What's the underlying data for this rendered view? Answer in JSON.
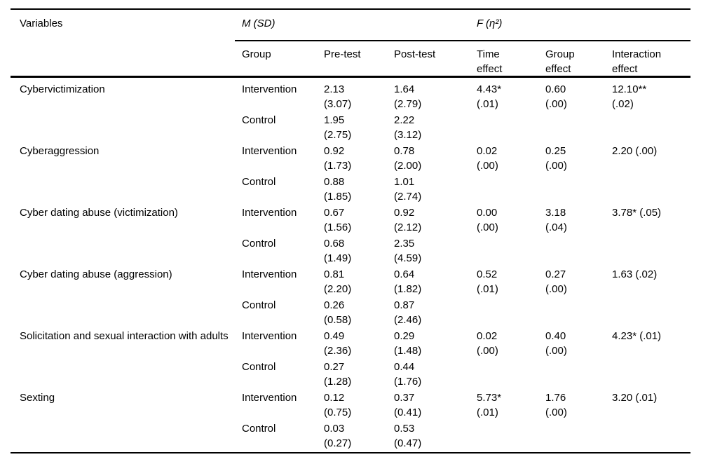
{
  "table": {
    "header": {
      "variables": "Variables",
      "msd": "M (SD)",
      "f_eta": "F (η²)",
      "group": "Group",
      "pre_test": "Pre-test",
      "post_test": "Post-test",
      "time_effect_line1": "Time",
      "time_effect_line2": "effect",
      "group_effect_line1": "Group",
      "group_effect_line2": "effect",
      "interaction_effect_line1": "Interaction",
      "interaction_effect_line2": "effect"
    },
    "rows": [
      {
        "variable": "Cybervictimization",
        "sub": [
          {
            "group": "Intervention",
            "pre_m": "2.13",
            "pre_sd": "(3.07)",
            "post_m": "1.64",
            "post_sd": "(2.79)",
            "time_f": "4.43*",
            "time_eta": "(.01)",
            "group_f": "0.60",
            "group_eta": "(.00)",
            "int_f": "12.10**",
            "int_eta": "(.02)"
          },
          {
            "group": "Control",
            "pre_m": "1.95",
            "pre_sd": "(2.75)",
            "post_m": "2.22",
            "post_sd": "(3.12)"
          }
        ]
      },
      {
        "variable": "Cyberaggression",
        "sub": [
          {
            "group": "Intervention",
            "pre_m": "0.92",
            "pre_sd": "(1.73)",
            "post_m": "0.78",
            "post_sd": "(2.00)",
            "time_f": "0.02",
            "time_eta": "(.00)",
            "group_f": "0.25",
            "group_eta": "(.00)",
            "int_f": "2.20 (.00)"
          },
          {
            "group": "Control",
            "pre_m": "0.88",
            "pre_sd": "(1.85)",
            "post_m": "1.01",
            "post_sd": "(2.74)"
          }
        ]
      },
      {
        "variable": "Cyber dating abuse (victimization)",
        "sub": [
          {
            "group": "Intervention",
            "pre_m": "0.67",
            "pre_sd": "(1.56)",
            "post_m": "0.92",
            "post_sd": "(2.12)",
            "time_f": "0.00",
            "time_eta": "(.00)",
            "group_f": "3.18",
            "group_eta": "(.04)",
            "int_f": "3.78* (.05)"
          },
          {
            "group": "Control",
            "pre_m": "0.68",
            "pre_sd": "(1.49)",
            "post_m": "2.35",
            "post_sd": "(4.59)"
          }
        ]
      },
      {
        "variable": "Cyber dating abuse (aggression)",
        "sub": [
          {
            "group": "Intervention",
            "pre_m": "0.81",
            "pre_sd": "(2.20)",
            "post_m": "0.64",
            "post_sd": "(1.82)",
            "time_f": "0.52",
            "time_eta": "(.01)",
            "group_f": "0.27",
            "group_eta": "(.00)",
            "int_f": "1.63 (.02)"
          },
          {
            "group": "Control",
            "pre_m": "0.26",
            "pre_sd": "(0.58)",
            "post_m": "0.87",
            "post_sd": "(2.46)"
          }
        ]
      },
      {
        "variable": "Solicitation and sexual interaction with adults",
        "sub": [
          {
            "group": "Intervention",
            "pre_m": "0.49",
            "pre_sd": "(2.36)",
            "post_m": "0.29",
            "post_sd": "(1.48)",
            "time_f": "0.02",
            "time_eta": "(.00)",
            "group_f": "0.40",
            "group_eta": "(.00)",
            "int_f": "4.23* (.01)"
          },
          {
            "group": "Control",
            "pre_m": "0.27",
            "pre_sd": "(1.28)",
            "post_m": "0.44",
            "post_sd": "(1.76)"
          }
        ]
      },
      {
        "variable": "Sexting",
        "sub": [
          {
            "group": "Intervention",
            "pre_m": "0.12",
            "pre_sd": "(0.75)",
            "post_m": "0.37",
            "post_sd": "(0.41)",
            "time_f": "5.73*",
            "time_eta": "(.01)",
            "group_f": "1.76",
            "group_eta": "(.00)",
            "int_f": "3.20 (.01)"
          },
          {
            "group": "Control",
            "pre_m": "0.03",
            "pre_sd": "(0.27)",
            "post_m": "0.53",
            "post_sd": "(0.47)"
          }
        ]
      }
    ]
  }
}
